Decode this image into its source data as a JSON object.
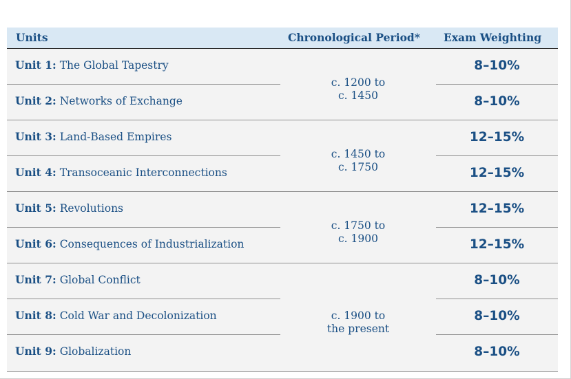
{
  "header": {
    "units": "Units",
    "period": "Chronological Period*",
    "weighting": "Exam Weighting"
  },
  "periods": [
    {
      "line1": "c. 1200 to",
      "line2": "c. 1450"
    },
    {
      "line1": "c. 1450 to",
      "line2": "c. 1750"
    },
    {
      "line1": "c. 1750 to",
      "line2": "c. 1900"
    },
    {
      "line1": "c. 1900 to",
      "line2": "the present"
    }
  ],
  "units": [
    {
      "num": "Unit 1:",
      "title": "The Global Tapestry",
      "weight": "8–10%"
    },
    {
      "num": "Unit 2:",
      "title": "Networks of Exchange",
      "weight": "8–10%"
    },
    {
      "num": "Unit 3:",
      "title": "Land-Based Empires",
      "weight": "12–15%"
    },
    {
      "num": "Unit 4:",
      "title": "Transoceanic Interconnections",
      "weight": "12–15%"
    },
    {
      "num": "Unit 5:",
      "title": "Revolutions",
      "weight": "12–15%"
    },
    {
      "num": "Unit 6:",
      "title": "Consequences of Industrialization",
      "weight": "12–15%"
    },
    {
      "num": "Unit 7:",
      "title": "Global Conflict",
      "weight": "8–10%"
    },
    {
      "num": "Unit 8:",
      "title": "Cold War and Decolonization",
      "weight": "8–10%"
    },
    {
      "num": "Unit 9:",
      "title": "Globalization",
      "weight": "8–10%"
    }
  ]
}
